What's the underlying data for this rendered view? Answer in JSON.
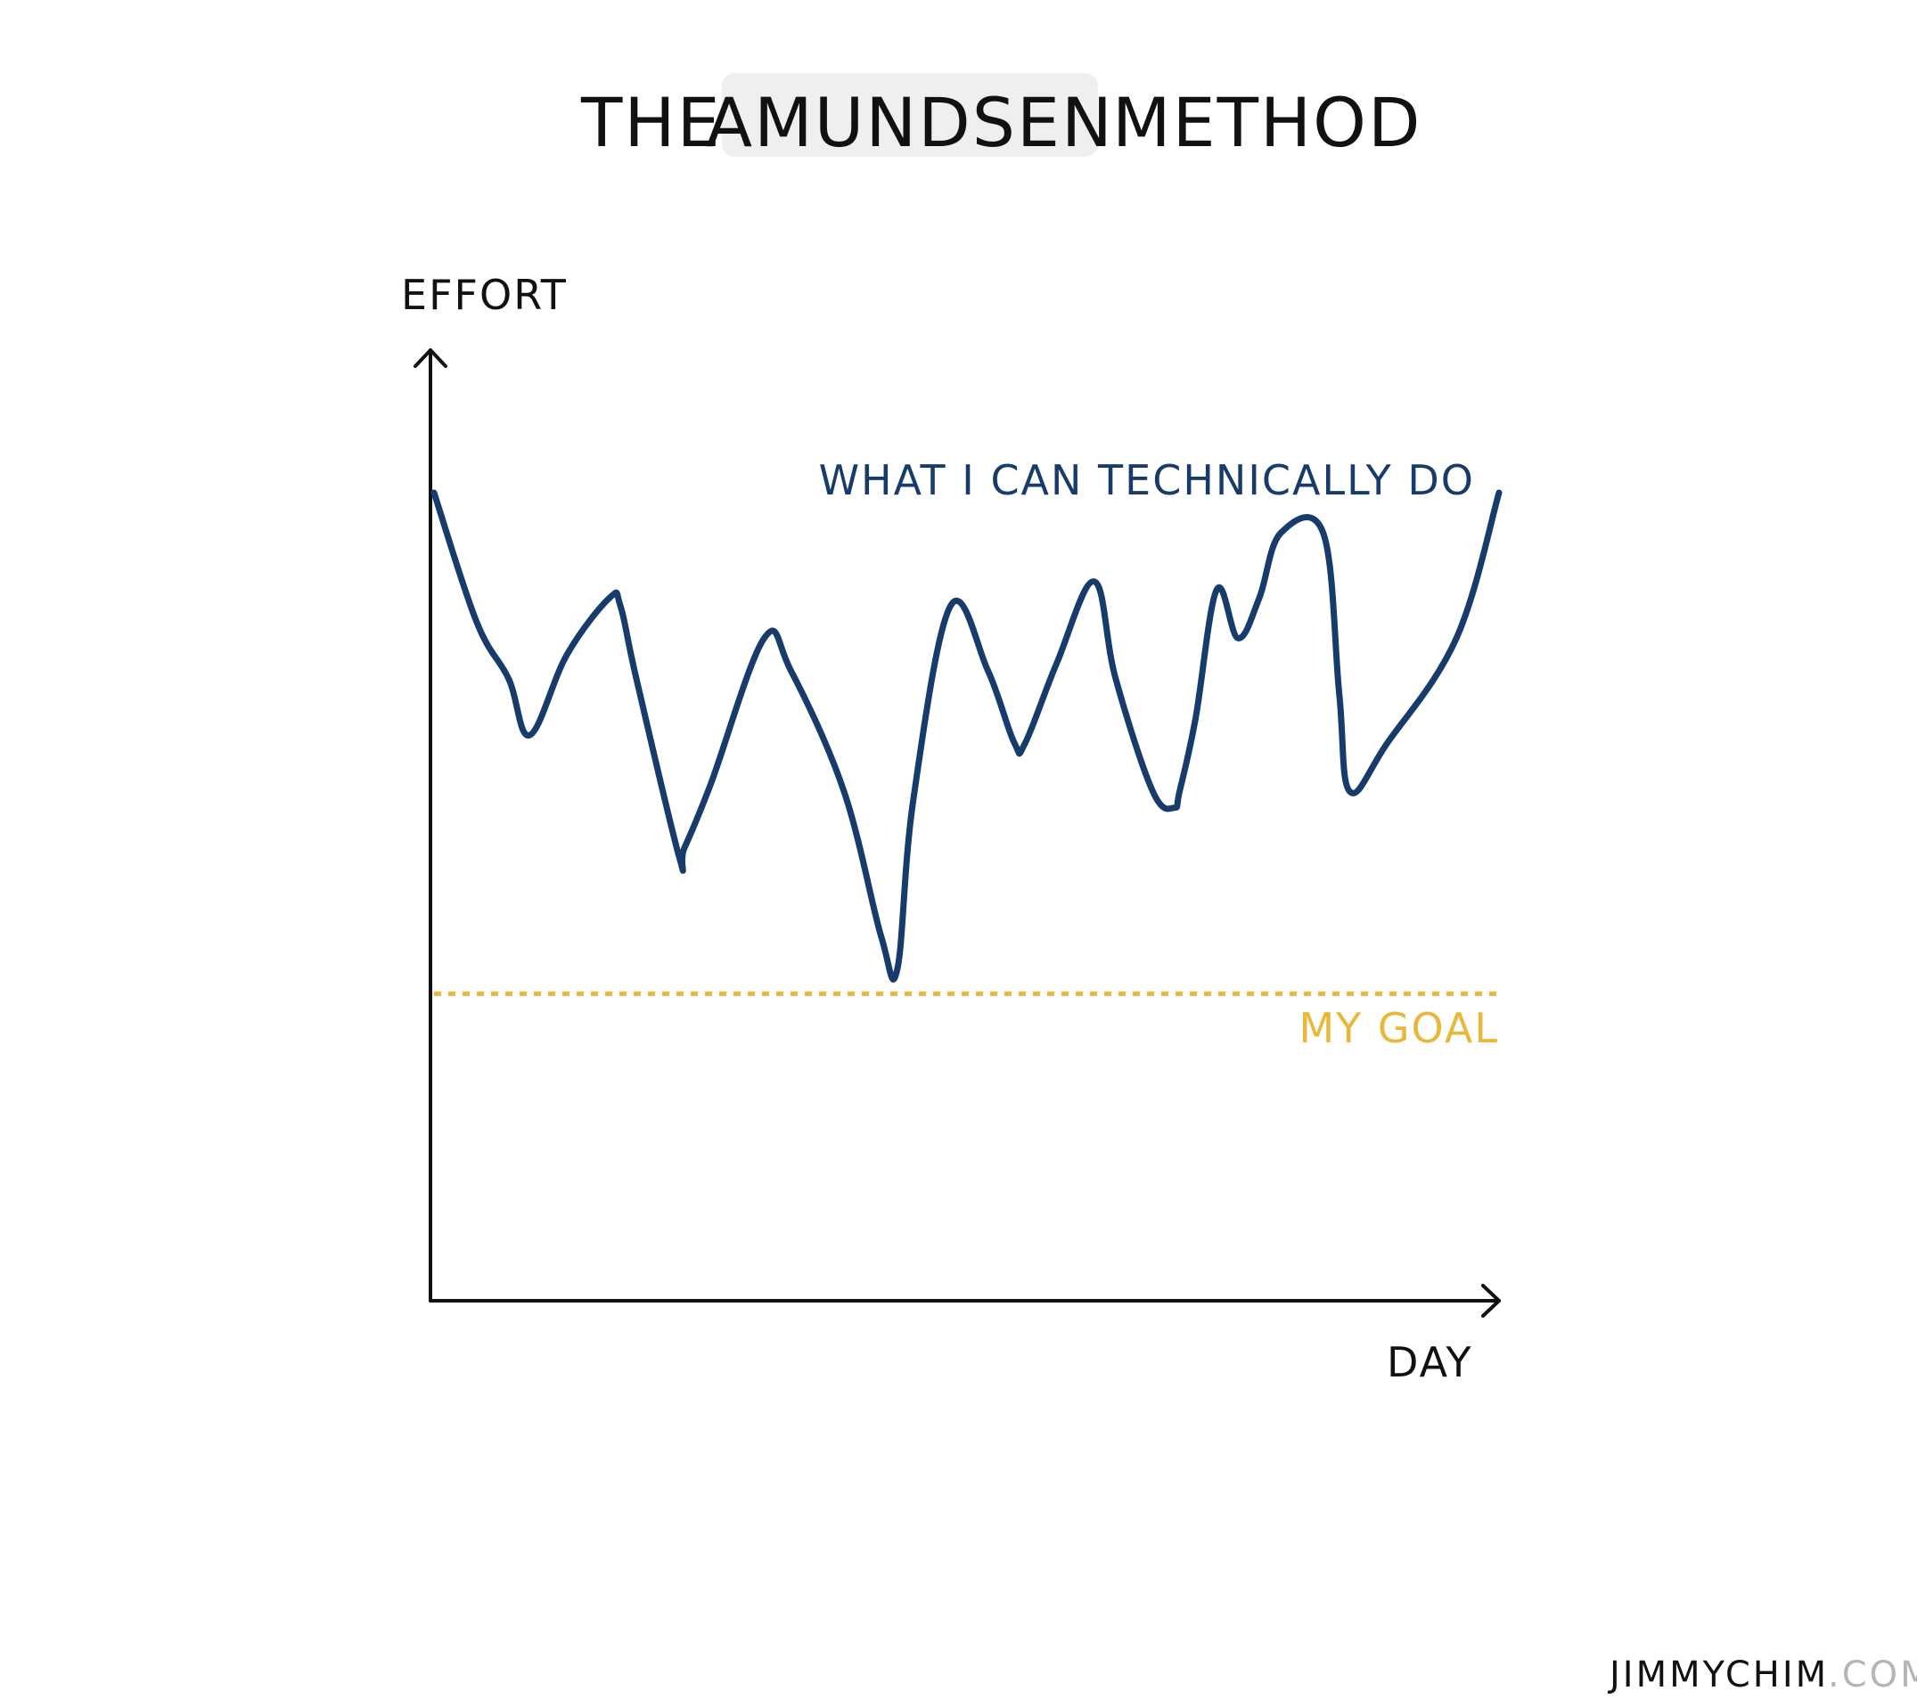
{
  "title": {
    "prefix": "THE",
    "highlight": "AMUNDSEN",
    "suffix": "METHOD"
  },
  "credit": {
    "main": "JIMMYCHIM",
    "suffix": ".COM"
  },
  "colors": {
    "line": "#173c6b",
    "goal": "#e8b83a",
    "highlight_bg": "#efefef",
    "axis": "#111111"
  },
  "chart_data": {
    "type": "line",
    "xlabel": "DAY",
    "ylabel": "EFFORT",
    "xlim": [
      0,
      100
    ],
    "ylim": [
      0,
      100
    ],
    "grid": false,
    "series": [
      {
        "name": "WHAT I CAN TECHNICALLY DO",
        "style": "solid",
        "x": [
          0,
          4,
          7,
          9,
          12.5,
          16.5,
          17.5,
          19,
          23,
          23.5,
          26,
          31,
          33.5,
          38.5,
          42,
          43.5,
          45,
          48.5,
          52,
          54.5,
          55.5,
          58.5,
          62,
          64,
          67.5,
          69.5,
          70,
          71.5,
          73.5,
          75.5,
          77.5,
          79.5,
          83.5,
          85,
          86,
          89.5,
          96,
          100
        ],
        "y": [
          100,
          84,
          77,
          70,
          80,
          87,
          86,
          77,
          55,
          56,
          64,
          82,
          78,
          63,
          45,
          41,
          62,
          86,
          78,
          69,
          69,
          79,
          89,
          77,
          63,
          61,
          63,
          72,
          88,
          82,
          87,
          95,
          95,
          75,
          63,
          69,
          82,
          100
        ]
      },
      {
        "name": "MY GOAL",
        "style": "dotted",
        "x": [
          0,
          100
        ],
        "y": [
          38,
          38
        ]
      }
    ]
  }
}
